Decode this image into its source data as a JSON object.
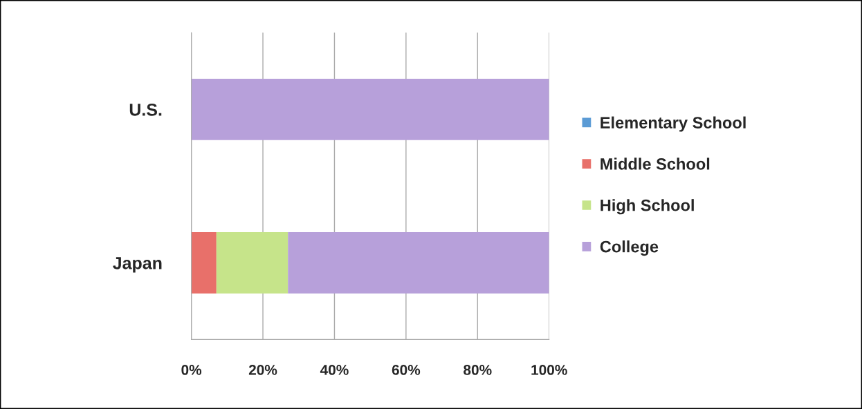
{
  "chart_data": {
    "type": "bar",
    "orientation": "horizontal",
    "stacked": true,
    "categories": [
      "U.S.",
      "Japan"
    ],
    "series": [
      {
        "name": "Elementary School",
        "color": "#5b9bd5",
        "values": [
          0,
          0
        ]
      },
      {
        "name": "Middle School",
        "color": "#e8706a",
        "values": [
          0,
          7
        ]
      },
      {
        "name": "High School",
        "color": "#c6e48a",
        "values": [
          0,
          20
        ]
      },
      {
        "name": "College",
        "color": "#b7a0da",
        "values": [
          100,
          73
        ]
      }
    ],
    "xlim": [
      0,
      100
    ],
    "xticks": [
      {
        "value": 0,
        "label": "0%"
      },
      {
        "value": 20,
        "label": "20%"
      },
      {
        "value": 40,
        "label": "40%"
      },
      {
        "value": 60,
        "label": "60%"
      },
      {
        "value": 80,
        "label": "80%"
      },
      {
        "value": 100,
        "label": "100%"
      }
    ],
    "grid": "x",
    "legend": "right"
  }
}
